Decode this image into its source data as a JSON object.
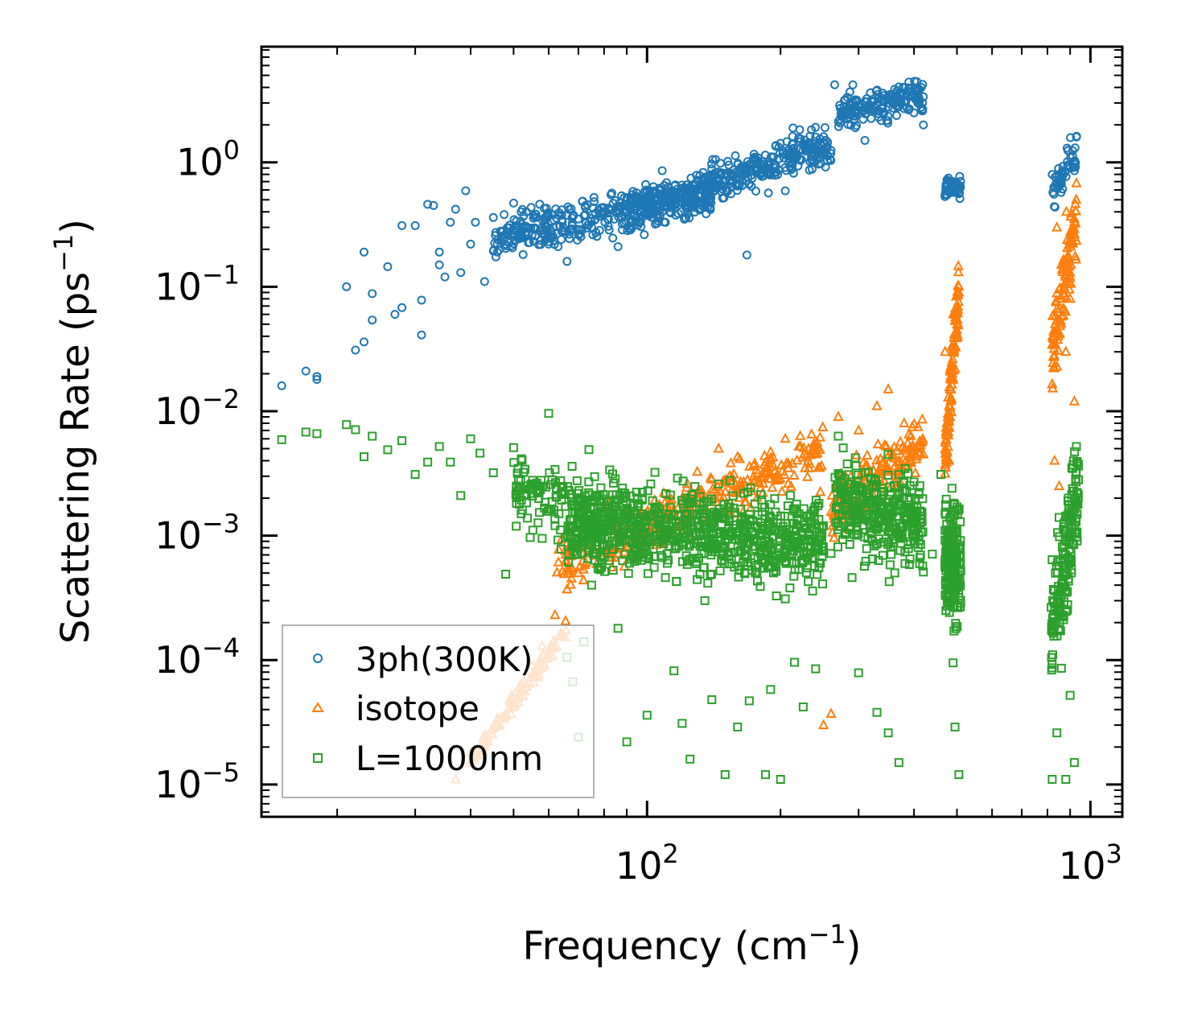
{
  "chart_data": {
    "type": "scatter",
    "xscale": "log",
    "yscale": "log",
    "xlim": [
      13.5,
      1180
    ],
    "ylim": [
      5.5e-06,
      8.5
    ],
    "xlabel": "Frequency (cm",
    "xlabel_exp": "−1",
    "xlabel_end": ")",
    "ylabel": "Scattering Rate (ps",
    "ylabel_exp": "−1",
    "ylabel_end": ")",
    "xticks": [
      {
        "value": 100,
        "base": "10",
        "exp": "2"
      },
      {
        "value": 1000,
        "base": "10",
        "exp": "3"
      }
    ],
    "yticks": [
      {
        "value": 1,
        "base": "10",
        "exp": "0"
      },
      {
        "value": 0.1,
        "base": "10",
        "exp": "−1"
      },
      {
        "value": 0.01,
        "base": "10",
        "exp": "−2"
      },
      {
        "value": 0.001,
        "base": "10",
        "exp": "−3"
      },
      {
        "value": 0.0001,
        "base": "10",
        "exp": "−4"
      },
      {
        "value": 1e-05,
        "base": "10",
        "exp": "−5"
      }
    ],
    "legend_position": "lower-left",
    "series": [
      {
        "name": "3ph(300K)",
        "marker": "circle",
        "color": "#1f77b4",
        "points": [
          [
            15,
            0.016
          ],
          [
            17,
            0.021
          ],
          [
            18,
            0.019
          ],
          [
            18,
            0.018
          ],
          [
            21,
            0.1
          ],
          [
            22,
            0.031
          ],
          [
            23,
            0.19
          ],
          [
            23,
            0.036
          ],
          [
            24,
            0.054
          ],
          [
            24,
            0.088
          ],
          [
            26,
            0.145
          ],
          [
            27,
            0.06
          ],
          [
            28,
            0.31
          ],
          [
            28,
            0.068
          ],
          [
            30,
            0.31
          ],
          [
            31,
            0.041
          ],
          [
            31,
            0.078
          ],
          [
            32,
            0.46
          ],
          [
            33,
            0.45
          ],
          [
            34,
            0.15
          ],
          [
            34,
            0.19
          ],
          [
            35,
            0.12
          ],
          [
            36,
            0.33
          ],
          [
            37,
            0.42
          ],
          [
            38,
            0.13
          ],
          [
            39,
            0.59
          ],
          [
            40,
            0.22
          ],
          [
            41,
            0.33
          ],
          [
            43,
            0.11
          ],
          [
            45,
            0.36
          ],
          [
            47,
            0.28
          ],
          [
            50,
            0.47
          ],
          [
            52,
            0.4
          ],
          [
            55,
            0.26
          ],
          [
            58,
            0.3
          ],
          [
            60,
            0.22
          ],
          [
            63,
            0.21
          ],
          [
            66,
            0.16
          ],
          [
            70,
            0.35
          ],
          [
            75,
            0.3
          ],
          [
            80,
            0.4
          ],
          [
            86,
            0.21
          ],
          [
            92,
            0.34
          ],
          [
            98,
            0.42
          ],
          [
            105,
            0.46
          ],
          [
            112,
            0.55
          ],
          [
            120,
            0.48
          ],
          [
            128,
            0.67
          ],
          [
            137,
            0.59
          ],
          [
            146,
            0.81
          ],
          [
            155,
            0.7
          ],
          [
            165,
            0.93
          ],
          [
            168,
            0.18
          ],
          [
            175,
            1.1
          ],
          [
            185,
            0.85
          ],
          [
            195,
            1.35
          ],
          [
            205,
            0.59
          ],
          [
            215,
            1.2
          ],
          [
            225,
            1.4
          ],
          [
            240,
            1.6
          ],
          [
            252,
            1.9
          ],
          [
            265,
            4.2
          ],
          [
            280,
            3.2
          ],
          [
            295,
            1.9
          ],
          [
            310,
            1.5
          ],
          [
            325,
            2.8
          ],
          [
            340,
            3.6
          ],
          [
            360,
            3.1
          ],
          [
            380,
            2.7
          ],
          [
            400,
            2.5
          ],
          [
            420,
            2.0
          ],
          [
            470,
            0.55
          ],
          [
            480,
            0.6
          ],
          [
            490,
            0.7
          ],
          [
            500,
            0.62
          ],
          [
            820,
            0.8
          ],
          [
            850,
            0.7
          ],
          [
            900,
            0.9
          ],
          [
            930,
            1.6
          ]
        ]
      },
      {
        "name": "isotope",
        "marker": "triangle",
        "color": "#ff7f0e",
        "points": [
          [
            37,
            1.1e-05
          ],
          [
            40,
            1.8e-05
          ],
          [
            43,
            2.5e-05
          ],
          [
            46,
            3.4e-05
          ],
          [
            49,
            4.8e-05
          ],
          [
            52,
            6.5e-05
          ],
          [
            55,
            9e-05
          ],
          [
            58,
            0.00013
          ],
          [
            62,
            0.00023
          ],
          [
            66,
            0.00037
          ],
          [
            70,
            0.0005
          ],
          [
            76,
            0.00069
          ],
          [
            82,
            0.0008
          ],
          [
            90,
            0.00095
          ],
          [
            100,
            0.0012
          ],
          [
            115,
            0.0016
          ],
          [
            130,
            0.0022
          ],
          [
            145,
            0.005
          ],
          [
            160,
            0.0043
          ],
          [
            175,
            0.0038
          ],
          [
            190,
            0.0047
          ],
          [
            205,
            0.006
          ],
          [
            220,
            0.0052
          ],
          [
            235,
            0.0065
          ],
          [
            250,
            3e-05
          ],
          [
            260,
            3.7e-05
          ],
          [
            270,
            0.009
          ],
          [
            300,
            0.007
          ],
          [
            330,
            0.011
          ],
          [
            350,
            0.015
          ],
          [
            380,
            0.008
          ],
          [
            420,
            0.0045
          ],
          [
            470,
            0.03
          ],
          [
            490,
            0.06
          ],
          [
            505,
            0.09
          ],
          [
            480,
            0.004
          ],
          [
            840,
            0.3
          ],
          [
            860,
            0.15
          ],
          [
            880,
            0.03
          ],
          [
            900,
            0.08
          ],
          [
            920,
            0.012
          ],
          [
            830,
            0.004
          ],
          [
            850,
            0.0025
          ]
        ]
      },
      {
        "name": "L=1000nm",
        "marker": "square",
        "color": "#2ca02c",
        "points": [
          [
            15,
            0.0059
          ],
          [
            17,
            0.0068
          ],
          [
            18,
            0.0066
          ],
          [
            21,
            0.0078
          ],
          [
            22,
            0.0071
          ],
          [
            23,
            0.0043
          ],
          [
            24,
            0.0063
          ],
          [
            26,
            0.0049
          ],
          [
            28,
            0.0058
          ],
          [
            30,
            0.0031
          ],
          [
            32,
            0.0039
          ],
          [
            34,
            0.0052
          ],
          [
            36,
            0.0039
          ],
          [
            38,
            0.0021
          ],
          [
            40,
            0.006
          ],
          [
            42,
            0.0046
          ],
          [
            45,
            0.0032
          ],
          [
            48,
            0.00049
          ],
          [
            50,
            0.0051
          ],
          [
            52,
            0.0015
          ],
          [
            55,
            0.0026
          ],
          [
            58,
            0.00095
          ],
          [
            60,
            0.0096
          ],
          [
            62,
            0.0034
          ],
          [
            64,
            0.00078
          ],
          [
            66,
            0.000105
          ],
          [
            68,
            6.7e-05
          ],
          [
            70,
            2.4e-05
          ],
          [
            72,
            0.00014
          ],
          [
            75,
            0.0004
          ],
          [
            78,
            0.0019
          ],
          [
            82,
            0.0012
          ],
          [
            86,
            0.00018
          ],
          [
            90,
            2.2e-05
          ],
          [
            95,
            0.00085
          ],
          [
            100,
            3.6e-05
          ],
          [
            105,
            0.0017
          ],
          [
            110,
            0.00046
          ],
          [
            115,
            8.2e-05
          ],
          [
            120,
            3.1e-05
          ],
          [
            125,
            1.6e-05
          ],
          [
            130,
            0.0012
          ],
          [
            135,
            0.0003
          ],
          [
            140,
            4.8e-05
          ],
          [
            145,
            0.0026
          ],
          [
            150,
            1.2e-05
          ],
          [
            155,
            0.00065
          ],
          [
            160,
            2.9e-05
          ],
          [
            165,
            0.00095
          ],
          [
            170,
            4.7e-05
          ],
          [
            175,
            0.0018
          ],
          [
            180,
            0.00039
          ],
          [
            185,
            1.2e-05
          ],
          [
            190,
            5.8e-05
          ],
          [
            195,
            0.0011
          ],
          [
            200,
            1.1e-05
          ],
          [
            205,
            0.00031
          ],
          [
            210,
            0.00072
          ],
          [
            215,
            9.6e-05
          ],
          [
            220,
            0.0015
          ],
          [
            225,
            4.2e-05
          ],
          [
            230,
            0.00055
          ],
          [
            240,
            8.5e-05
          ],
          [
            250,
            0.0012
          ],
          [
            260,
            0.00072
          ],
          [
            270,
            0.0063
          ],
          [
            280,
            0.0021
          ],
          [
            290,
            0.00046
          ],
          [
            300,
            7.9e-05
          ],
          [
            310,
            0.0032
          ],
          [
            320,
            0.0012
          ],
          [
            330,
            3.8e-05
          ],
          [
            340,
            0.0024
          ],
          [
            350,
            2.6e-05
          ],
          [
            360,
            0.00087
          ],
          [
            370,
            1.5e-05
          ],
          [
            380,
            0.0014
          ],
          [
            400,
            0.0027
          ],
          [
            420,
            0.00051
          ],
          [
            440,
            0.00071
          ],
          [
            460,
            0.0031
          ],
          [
            470,
            0.0011
          ],
          [
            480,
            0.00032
          ],
          [
            490,
            9.5e-05
          ],
          [
            495,
            2.9e-05
          ],
          [
            500,
            0.0017
          ],
          [
            505,
            1.2e-05
          ],
          [
            510,
            0.00052
          ],
          [
            820,
            1.1e-05
          ],
          [
            830,
            0.00036
          ],
          [
            840,
            2.6e-05
          ],
          [
            850,
            0.0014
          ],
          [
            860,
            8.6e-05
          ],
          [
            870,
            0.00072
          ],
          [
            880,
            1.1e-05
          ],
          [
            890,
            0.0019
          ],
          [
            900,
            5.2e-05
          ],
          [
            910,
            0.0035
          ],
          [
            920,
            1.5e-05
          ],
          [
            930,
            0.0052
          ]
        ]
      }
    ],
    "clusters": [
      {
        "series": 0,
        "n": 360,
        "x0": 45,
        "x1": 140,
        "y0": 0.25,
        "y1": 0.55,
        "s": 0.14
      },
      {
        "series": 0,
        "n": 420,
        "x0": 90,
        "x1": 260,
        "y0": 0.4,
        "y1": 1.4,
        "s": 0.13
      },
      {
        "series": 0,
        "n": 160,
        "x0": 270,
        "x1": 420,
        "y0": 2.5,
        "y1": 3.4,
        "s": 0.12
      },
      {
        "series": 0,
        "n": 50,
        "x0": 468,
        "x1": 510,
        "y0": 0.62,
        "y1": 0.62,
        "s": 0.08
      },
      {
        "series": 0,
        "n": 50,
        "x0": 820,
        "x1": 940,
        "y0": 0.55,
        "y1": 1.2,
        "s": 0.12
      },
      {
        "series": 1,
        "n": 120,
        "x0": 40,
        "x1": 66,
        "y0": 1.5e-05,
        "y1": 0.00018,
        "s": 0.06
      },
      {
        "series": 1,
        "n": 320,
        "x0": 62,
        "x1": 250,
        "y0": 0.0006,
        "y1": 0.0045,
        "s": 0.18
      },
      {
        "series": 1,
        "n": 180,
        "x0": 260,
        "x1": 420,
        "y0": 0.0015,
        "y1": 0.006,
        "s": 0.2
      },
      {
        "series": 1,
        "n": 120,
        "x0": 470,
        "x1": 505,
        "y0": 0.004,
        "y1": 0.09,
        "s": 0.18
      },
      {
        "series": 1,
        "n": 130,
        "x0": 820,
        "x1": 930,
        "y0": 0.03,
        "y1": 0.4,
        "s": 0.24
      },
      {
        "series": 2,
        "n": 200,
        "x0": 50,
        "x1": 100,
        "y0": 0.0025,
        "y1": 0.0012,
        "s": 0.25
      },
      {
        "series": 2,
        "n": 800,
        "x0": 66,
        "x1": 250,
        "y0": 0.0012,
        "y1": 0.0009,
        "s": 0.28
      },
      {
        "series": 2,
        "n": 320,
        "x0": 265,
        "x1": 420,
        "y0": 0.002,
        "y1": 0.0012,
        "s": 0.3
      },
      {
        "series": 2,
        "n": 170,
        "x0": 470,
        "x1": 510,
        "y0": 0.0006,
        "y1": 0.0006,
        "s": 0.4
      },
      {
        "series": 2,
        "n": 170,
        "x0": 815,
        "x1": 940,
        "y0": 0.00015,
        "y1": 0.0022,
        "s": 0.4
      }
    ]
  }
}
